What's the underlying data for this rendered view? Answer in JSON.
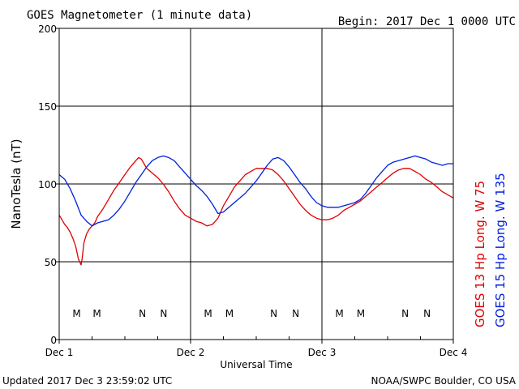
{
  "header": {
    "title": "GOES Magnetometer (1 minute data)",
    "begin": "Begin:  2017 Dec 1 0000 UTC"
  },
  "footer": {
    "updated": "Updated 2017 Dec  3 23:59:02 UTC",
    "credit": "NOAA/SWPC Boulder, CO USA"
  },
  "chart_data": {
    "type": "line",
    "title": "GOES Magnetometer (1 minute data)",
    "xlabel": "Universal Time",
    "ylabel": "NanoTesla (nT)",
    "xlim": [
      0,
      72
    ],
    "x_unit": "hours since 2017 Dec 1 0000 UTC",
    "x_ticks": [
      {
        "label": "Dec 1",
        "x": 0
      },
      {
        "label": "Dec 2",
        "x": 24
      },
      {
        "label": "Dec 3",
        "x": 48
      },
      {
        "label": "Dec 4",
        "x": 72
      }
    ],
    "ylim": [
      0,
      200
    ],
    "y_ticks": [
      0,
      50,
      100,
      150,
      200
    ],
    "grid": true,
    "legend_position": "right, vertical",
    "colors": {
      "goes13": "#e00000",
      "goes15": "#0020e0"
    },
    "series": [
      {
        "name": "GOES 13 Hp",
        "legend_label": "GOES 13 Hp  Long. W 75",
        "color": "#e00000",
        "x": [
          0,
          0.5,
          1,
          1.5,
          2,
          2.5,
          3,
          3.5,
          4,
          4.2,
          4.5,
          5,
          5.5,
          6,
          6.5,
          7,
          8,
          9,
          10,
          11,
          12,
          13,
          14,
          14.5,
          15,
          15.5,
          16,
          17,
          18,
          19,
          20,
          21,
          22,
          23,
          24,
          25,
          26,
          27,
          28,
          29,
          30,
          31,
          32,
          33,
          34,
          35,
          36,
          37,
          38,
          39,
          40,
          41,
          42,
          43,
          44,
          45,
          46,
          47,
          48,
          49,
          50,
          51,
          52,
          53,
          54,
          55,
          56,
          57,
          58,
          59,
          60,
          61,
          62,
          63,
          64,
          65,
          66,
          67,
          68,
          69,
          70,
          71,
          72
        ],
        "y": [
          80,
          77,
          74,
          72,
          69,
          65,
          60,
          52,
          48,
          52,
          62,
          68,
          71,
          73,
          75,
          79,
          84,
          90,
          96,
          101,
          106,
          111,
          115,
          117,
          116,
          113,
          110,
          107,
          104,
          100,
          95,
          89,
          84,
          80,
          78,
          76,
          75,
          73,
          74,
          78,
          86,
          92,
          98,
          102,
          106,
          108,
          110,
          110,
          110,
          109,
          106,
          102,
          97,
          92,
          87,
          83,
          80,
          78,
          77,
          77,
          78,
          80,
          83,
          85,
          87,
          89,
          92,
          95,
          98,
          101,
          104,
          107,
          109,
          110,
          110,
          108,
          106,
          103,
          101,
          98,
          95,
          93,
          91
        ]
      },
      {
        "name": "GOES 15 Hp",
        "legend_label": "GOES 15 Hp  Long. W 135",
        "color": "#0020e0",
        "x": [
          0,
          1,
          2,
          3,
          4,
          5,
          6,
          7,
          8,
          9,
          10,
          11,
          12,
          13,
          14,
          15,
          16,
          17,
          18,
          19,
          20,
          21,
          22,
          23,
          24,
          25,
          26,
          27,
          28,
          29,
          30,
          31,
          32,
          33,
          34,
          35,
          36,
          37,
          38,
          39,
          40,
          41,
          42,
          43,
          44,
          45,
          46,
          47,
          48,
          49,
          50,
          51,
          52,
          53,
          54,
          55,
          56,
          57,
          58,
          59,
          60,
          61,
          62,
          63,
          64,
          65,
          66,
          67,
          68,
          69,
          70,
          71,
          72
        ],
        "y": [
          106,
          103,
          97,
          89,
          80,
          76,
          73,
          75,
          76,
          77,
          80,
          84,
          89,
          95,
          101,
          106,
          111,
          115,
          117,
          118,
          117,
          115,
          111,
          107,
          103,
          99,
          96,
          92,
          87,
          81,
          82,
          85,
          88,
          91,
          94,
          98,
          102,
          107,
          112,
          116,
          117,
          115,
          111,
          106,
          101,
          97,
          92,
          88,
          86,
          85,
          85,
          85,
          86,
          87,
          88,
          90,
          94,
          99,
          104,
          108,
          112,
          114,
          115,
          116,
          117,
          118,
          117,
          116,
          114,
          113,
          112,
          113,
          113
        ]
      }
    ],
    "annotations": [
      {
        "text": "M",
        "x": 3.2,
        "series": "GOES 13 Hp"
      },
      {
        "text": "M",
        "x": 6.9,
        "series": "GOES 15 Hp"
      },
      {
        "text": "N",
        "x": 15.2,
        "series": "GOES 13 Hp"
      },
      {
        "text": "N",
        "x": 19.1,
        "series": "GOES 15 Hp"
      },
      {
        "text": "M",
        "x": 27.2,
        "series": "GOES 13 Hp"
      },
      {
        "text": "M",
        "x": 31.1,
        "series": "GOES 15 Hp"
      },
      {
        "text": "N",
        "x": 39.2,
        "series": "GOES 13 Hp"
      },
      {
        "text": "N",
        "x": 43.2,
        "series": "GOES 15 Hp"
      },
      {
        "text": "M",
        "x": 51.2,
        "series": "GOES 13 Hp"
      },
      {
        "text": "M",
        "x": 55.1,
        "series": "GOES 15 Hp"
      },
      {
        "text": "N",
        "x": 63.2,
        "series": "GOES 13 Hp"
      },
      {
        "text": "N",
        "x": 67.2,
        "series": "GOES 15 Hp"
      }
    ]
  }
}
